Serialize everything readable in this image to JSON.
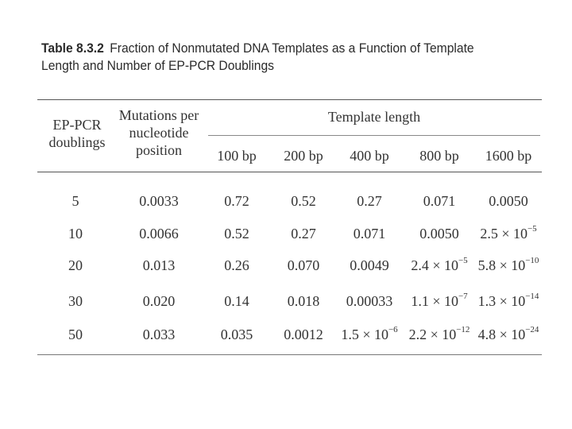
{
  "caption": {
    "table_number": "Table 8.3.2",
    "title": "Fraction of Nonmutated DNA Templates as a Function of Template Length and Number of EP-PCR Doublings"
  },
  "headers": {
    "col1": "EP-PCR doublings",
    "col2": "Mutations per nucleotide position",
    "group": "Template length",
    "lengths": [
      "100 bp",
      "200 bp",
      "400 bp",
      "800 bp",
      "1600 bp"
    ]
  },
  "rows": [
    {
      "doublings": "5",
      "mutations": "0.0033",
      "values": [
        {
          "m": "0.72"
        },
        {
          "m": "0.52"
        },
        {
          "m": "0.27"
        },
        {
          "m": "0.071"
        },
        {
          "m": "0.0050"
        }
      ]
    },
    {
      "doublings": "10",
      "mutations": "0.0066",
      "values": [
        {
          "m": "0.52"
        },
        {
          "m": "0.27"
        },
        {
          "m": "0.071"
        },
        {
          "m": "0.0050"
        },
        {
          "m": "2.5 × 10",
          "e": "−5"
        }
      ]
    },
    {
      "doublings": "20",
      "mutations": "0.013",
      "values": [
        {
          "m": "0.26"
        },
        {
          "m": "0.070"
        },
        {
          "m": "0.0049"
        },
        {
          "m": "2.4 × 10",
          "e": "−5"
        },
        {
          "m": "5.8 × 10",
          "e": "−10"
        }
      ]
    },
    {
      "doublings": "30",
      "mutations": "0.020",
      "values": [
        {
          "m": "0.14"
        },
        {
          "m": "0.018"
        },
        {
          "m": "0.00033"
        },
        {
          "m": "1.1 × 10",
          "e": "−7"
        },
        {
          "m": "1.3 × 10",
          "e": "−14"
        }
      ]
    },
    {
      "doublings": "50",
      "mutations": "0.033",
      "values": [
        {
          "m": "0.035"
        },
        {
          "m": "0.0012"
        },
        {
          "m": "1.5 × 10",
          "e": "−6"
        },
        {
          "m": "2.2 × 10",
          "e": "−12"
        },
        {
          "m": "4.8 × 10",
          "e": "−24"
        }
      ]
    }
  ]
}
